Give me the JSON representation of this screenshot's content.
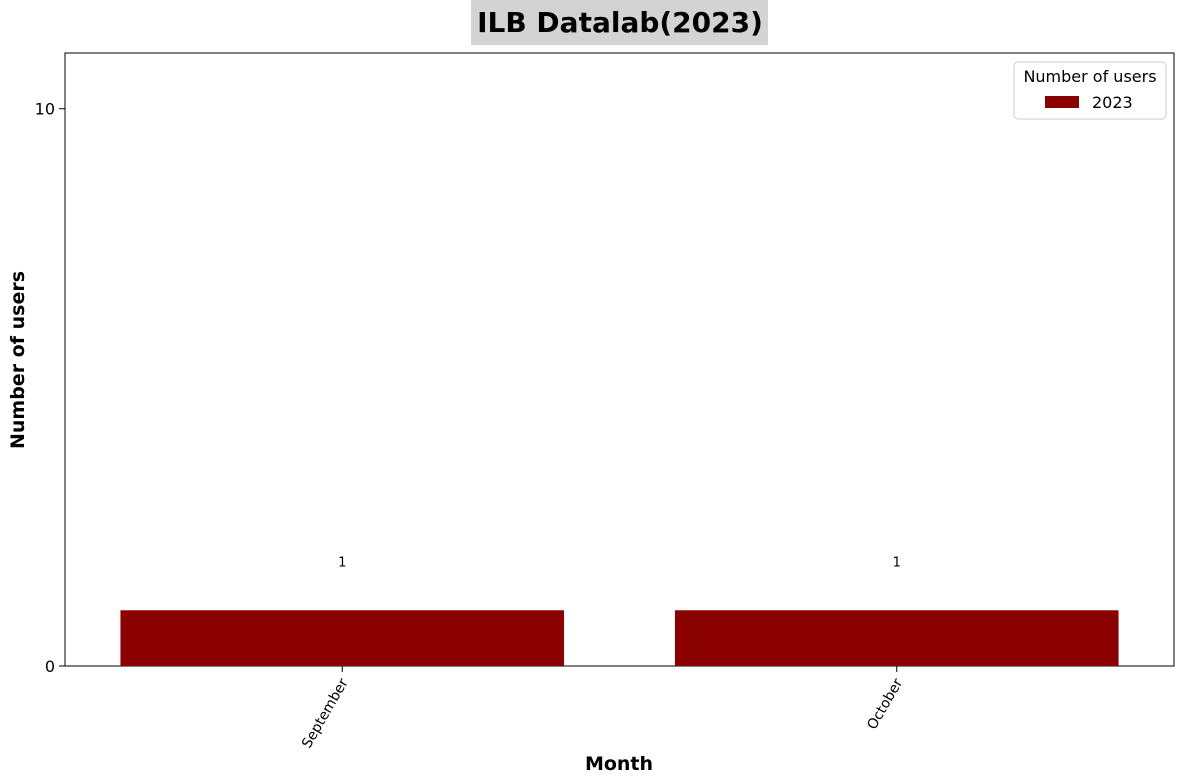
{
  "chart_data": {
    "type": "bar",
    "title": "ILB Datalab(2023)",
    "xlabel": "Month",
    "ylabel": "Number of users",
    "categories": [
      "September",
      "October"
    ],
    "series": [
      {
        "name": "2023",
        "values": [
          1,
          1
        ],
        "color": "#8b0000"
      }
    ],
    "data_labels": [
      "1",
      "1"
    ],
    "yticks": [
      0,
      10
    ],
    "ylim": [
      0,
      11
    ],
    "legend": {
      "title": "Number of users",
      "position": "top-right"
    },
    "grid": false,
    "colors": {
      "bar": "#8b0000",
      "title_background": "#d3d3d3"
    }
  }
}
